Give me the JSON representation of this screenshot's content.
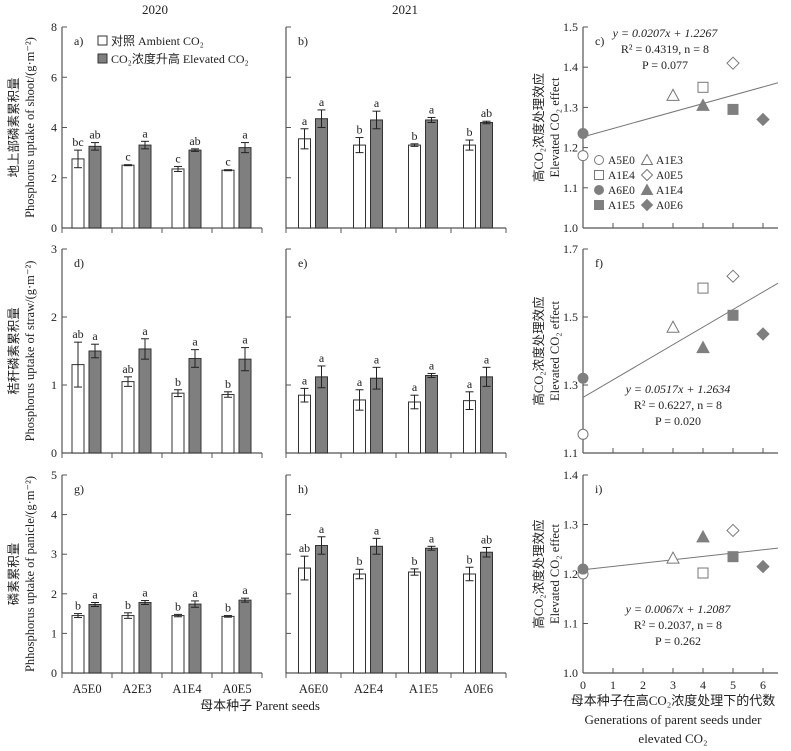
{
  "figure": {
    "year_labels": [
      "2020",
      "2021"
    ],
    "x_axis_bar_label": "母本种子 Parent seeds",
    "x_axis_scatter_label_lines": [
      "母本种子在高CO₂浓度处理下的代数",
      "Generations of parent seeds under",
      "elevated CO₂"
    ],
    "legend_bar": {
      "ambient": "对照 Ambient CO₂",
      "elevated": "CO₂浓度升高 Elevated CO₂"
    },
    "legend_scatter": [
      {
        "label": "A5E0",
        "marker": "circle",
        "filled": false
      },
      {
        "label": "A1E3",
        "marker": "triangle",
        "filled": false
      },
      {
        "label": "A1E4",
        "marker": "square",
        "filled": false
      },
      {
        "label": "A0E5",
        "marker": "diamond",
        "filled": false
      },
      {
        "label": "A6E0",
        "marker": "circle",
        "filled": true
      },
      {
        "label": "A1E4",
        "marker": "triangle",
        "filled": true
      },
      {
        "label": "A1E5",
        "marker": "square",
        "filled": true
      },
      {
        "label": "A0E6",
        "marker": "diamond",
        "filled": true
      }
    ],
    "colors": {
      "elevated_bar": "#7f7f7f",
      "ambient_bar": "#ffffff",
      "filled_marker": "#7f7f7f",
      "regression_line": "#777777"
    }
  },
  "chart_data": [
    {
      "id": "a",
      "panel_label": "a)",
      "type": "bar",
      "year": "2020",
      "ylabel_lines": [
        "地上部磷素累积量",
        "Phosphorus uptake of shoot/(g·m⁻²)"
      ],
      "ylim": [
        0,
        8
      ],
      "yticks": [
        0,
        2,
        4,
        6,
        8
      ],
      "show_tick_labels": true,
      "categories": [
        "A5E0",
        "A2E3",
        "A1E4",
        "A0E5"
      ],
      "series": [
        {
          "name": "Ambient CO₂",
          "values": [
            2.75,
            2.5,
            2.35,
            2.3
          ],
          "errors": [
            0.35,
            0.02,
            0.1,
            0.02
          ],
          "letters": [
            "bc",
            "c",
            "c",
            "c"
          ]
        },
        {
          "name": "Elevated CO₂",
          "values": [
            3.25,
            3.3,
            3.1,
            3.2
          ],
          "errors": [
            0.15,
            0.15,
            0.05,
            0.2
          ],
          "letters": [
            "ab",
            "a",
            "ab",
            "a"
          ]
        }
      ]
    },
    {
      "id": "b",
      "panel_label": "b)",
      "type": "bar",
      "year": "2021",
      "ylabel_lines": [],
      "ylim": [
        0,
        8
      ],
      "yticks": [
        0,
        2,
        4,
        6,
        8
      ],
      "show_tick_labels": false,
      "categories": [
        "A6E0",
        "A2E4",
        "A1E5",
        "A0E6"
      ],
      "series": [
        {
          "name": "Ambient CO₂",
          "values": [
            3.55,
            3.3,
            3.3,
            3.3
          ],
          "errors": [
            0.4,
            0.3,
            0.05,
            0.2
          ],
          "letters": [
            "a",
            "b",
            "b",
            "b"
          ]
        },
        {
          "name": "Elevated CO₂",
          "values": [
            4.35,
            4.3,
            4.3,
            4.2
          ],
          "errors": [
            0.35,
            0.35,
            0.1,
            0.05
          ],
          "letters": [
            "a",
            "a",
            "a",
            "ab"
          ]
        }
      ]
    },
    {
      "id": "c",
      "panel_label": "c)",
      "type": "scatter",
      "ylabel_lines": [
        "高CO₂浓度处理效应",
        "Elevated CO₂ effect"
      ],
      "xlim": [
        0,
        6.5
      ],
      "xticks": [
        0,
        1,
        2,
        3,
        4,
        5,
        6
      ],
      "show_x_tick_labels": false,
      "ylim": [
        1.0,
        1.5
      ],
      "yticks": [
        1.0,
        1.1,
        1.2,
        1.3,
        1.4,
        1.5
      ],
      "points": [
        {
          "label": "A5E0",
          "x": 0,
          "y": 1.18
        },
        {
          "label": "A1E3",
          "x": 3,
          "y": 1.33
        },
        {
          "label": "A1E4",
          "x": 4,
          "y": 1.35
        },
        {
          "label": "A0E5",
          "x": 5,
          "y": 1.41
        },
        {
          "label": "A6E0",
          "x": 0,
          "y": 1.235
        },
        {
          "label": "A1E4",
          "x": 4,
          "y": 1.305
        },
        {
          "label": "A1E5",
          "x": 5,
          "y": 1.295
        },
        {
          "label": "A0E6",
          "x": 6,
          "y": 1.27
        }
      ],
      "regression": {
        "slope": 0.0207,
        "intercept": 1.2267,
        "x_range": [
          0,
          6.5
        ]
      },
      "annotation_lines": [
        "y = 0.0207x + 1.2267",
        "R² = 0.4319, n = 8",
        "P = 0.077"
      ],
      "annotation_position": "top",
      "show_legend": true
    },
    {
      "id": "d",
      "panel_label": "d)",
      "type": "bar",
      "year": "2020",
      "ylabel_lines": [
        "秸秆磷素累积量",
        "Phosphorus uptake of straw/(g·m⁻²)"
      ],
      "ylim": [
        0,
        3
      ],
      "yticks": [
        0,
        1,
        2,
        3
      ],
      "show_tick_labels": true,
      "categories": [
        "A5E0",
        "A2E3",
        "A1E4",
        "A0E5"
      ],
      "series": [
        {
          "name": "Ambient CO₂",
          "values": [
            1.3,
            1.05,
            0.88,
            0.86
          ],
          "errors": [
            0.33,
            0.07,
            0.05,
            0.04
          ],
          "letters": [
            "ab",
            "ab",
            "b",
            "b"
          ]
        },
        {
          "name": "Elevated CO₂",
          "values": [
            1.5,
            1.53,
            1.39,
            1.38
          ],
          "errors": [
            0.1,
            0.15,
            0.13,
            0.17
          ],
          "letters": [
            "a",
            "a",
            "a",
            "a"
          ]
        }
      ]
    },
    {
      "id": "e",
      "panel_label": "e)",
      "type": "bar",
      "year": "2021",
      "ylabel_lines": [],
      "ylim": [
        0,
        3
      ],
      "yticks": [
        0,
        1,
        2,
        3
      ],
      "show_tick_labels": false,
      "categories": [
        "A6E0",
        "A2E4",
        "A1E5",
        "A0E6"
      ],
      "series": [
        {
          "name": "Ambient CO₂",
          "values": [
            0.85,
            0.78,
            0.75,
            0.77
          ],
          "errors": [
            0.1,
            0.15,
            0.1,
            0.13
          ],
          "letters": [
            "a",
            "a",
            "a",
            "a"
          ]
        },
        {
          "name": "Elevated CO₂",
          "values": [
            1.12,
            1.1,
            1.14,
            1.12
          ],
          "errors": [
            0.16,
            0.16,
            0.03,
            0.14
          ],
          "letters": [
            "a",
            "a",
            "a",
            "a"
          ]
        }
      ]
    },
    {
      "id": "f",
      "panel_label": "f)",
      "type": "scatter",
      "ylabel_lines": [
        "高CO₂浓度处理效应",
        "Elevated CO₂ effect"
      ],
      "xlim": [
        0,
        6.5
      ],
      "xticks": [
        0,
        1,
        2,
        3,
        4,
        5,
        6
      ],
      "show_x_tick_labels": false,
      "ylim": [
        1.1,
        1.7
      ],
      "yticks": [
        1.1,
        1.3,
        1.5,
        1.7
      ],
      "points": [
        {
          "label": "A5E0",
          "x": 0,
          "y": 1.155
        },
        {
          "label": "A1E3",
          "x": 3,
          "y": 1.47
        },
        {
          "label": "A1E4",
          "x": 4,
          "y": 1.585
        },
        {
          "label": "A0E5",
          "x": 5,
          "y": 1.62
        },
        {
          "label": "A6E0",
          "x": 0,
          "y": 1.32
        },
        {
          "label": "A1E4",
          "x": 4,
          "y": 1.41
        },
        {
          "label": "A1E5",
          "x": 5,
          "y": 1.505
        },
        {
          "label": "A0E6",
          "x": 6,
          "y": 1.45
        }
      ],
      "regression": {
        "slope": 0.0517,
        "intercept": 1.2634,
        "x_range": [
          0,
          6.5
        ]
      },
      "annotation_lines": [
        "y = 0.0517x + 1.2634",
        "R² = 0.6227, n = 8",
        "P = 0.020"
      ],
      "annotation_position": "bottom",
      "show_legend": false
    },
    {
      "id": "g",
      "panel_label": "g)",
      "type": "bar",
      "year": "2020",
      "ylabel_lines": [
        "磷素累积量",
        "Phhosphorus uptake of panicle/(g·m⁻²)"
      ],
      "ylim": [
        0,
        5
      ],
      "yticks": [
        0,
        1,
        2,
        3,
        4,
        5
      ],
      "show_tick_labels": true,
      "categories": [
        "A5E0",
        "A2E3",
        "A1E4",
        "A0E5"
      ],
      "series": [
        {
          "name": "Ambient CO₂",
          "values": [
            1.45,
            1.45,
            1.45,
            1.43
          ],
          "errors": [
            0.05,
            0.07,
            0.03,
            0.02
          ],
          "letters": [
            "b",
            "b",
            "b",
            "b"
          ]
        },
        {
          "name": "Elevated CO₂",
          "values": [
            1.73,
            1.78,
            1.74,
            1.84
          ],
          "errors": [
            0.05,
            0.05,
            0.08,
            0.05
          ],
          "letters": [
            "a",
            "a",
            "a",
            "a"
          ]
        }
      ]
    },
    {
      "id": "h",
      "panel_label": "h)",
      "type": "bar",
      "year": "2021",
      "ylabel_lines": [],
      "ylim": [
        0,
        5
      ],
      "yticks": [
        0,
        1,
        2,
        3,
        4,
        5
      ],
      "show_tick_labels": false,
      "categories": [
        "A6E0",
        "A2E4",
        "A1E5",
        "A0E6"
      ],
      "series": [
        {
          "name": "Ambient CO₂",
          "values": [
            2.65,
            2.5,
            2.55,
            2.5
          ],
          "errors": [
            0.3,
            0.12,
            0.08,
            0.17
          ],
          "letters": [
            "ab",
            "b",
            "b",
            "b"
          ]
        },
        {
          "name": "Elevated CO₂",
          "values": [
            3.22,
            3.2,
            3.15,
            3.05
          ],
          "errors": [
            0.22,
            0.2,
            0.05,
            0.12
          ],
          "letters": [
            "a",
            "a",
            "a",
            "ab"
          ]
        }
      ]
    },
    {
      "id": "i",
      "panel_label": "i)",
      "type": "scatter",
      "ylabel_lines": [
        "高CO₂浓度处理效应",
        "Elevated CO₂ effect"
      ],
      "xlim": [
        0,
        6.5
      ],
      "xticks": [
        0,
        1,
        2,
        3,
        4,
        5,
        6
      ],
      "show_x_tick_labels": true,
      "ylim": [
        1.0,
        1.4
      ],
      "yticks": [
        1.0,
        1.1,
        1.2,
        1.3,
        1.4
      ],
      "points": [
        {
          "label": "A5E0",
          "x": 0,
          "y": 1.2
        },
        {
          "label": "A1E3",
          "x": 3,
          "y": 1.232
        },
        {
          "label": "A1E4",
          "x": 4,
          "y": 1.202
        },
        {
          "label": "A0E5",
          "x": 5,
          "y": 1.288
        },
        {
          "label": "A6E0",
          "x": 0,
          "y": 1.21
        },
        {
          "label": "A1E4",
          "x": 4,
          "y": 1.275
        },
        {
          "label": "A1E5",
          "x": 5,
          "y": 1.235
        },
        {
          "label": "A0E6",
          "x": 6,
          "y": 1.215
        }
      ],
      "regression": {
        "slope": 0.0067,
        "intercept": 1.2087,
        "x_range": [
          0,
          6.5
        ]
      },
      "annotation_lines": [
        "y = 0.0067x + 1.2087",
        "R² = 0.2037, n = 8",
        "P = 0.262"
      ],
      "annotation_position": "bottom",
      "show_legend": false
    }
  ]
}
